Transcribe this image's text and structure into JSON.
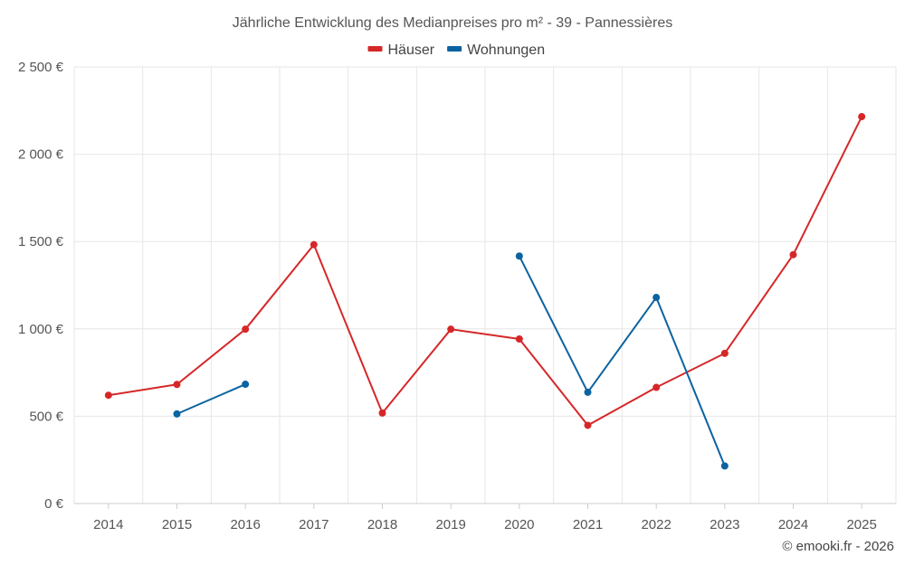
{
  "chart_data": {
    "type": "line",
    "title": "Jährliche Entwicklung des Medianpreises pro m² - 39 - Pannessières",
    "categories": [
      "2014",
      "2015",
      "2016",
      "2017",
      "2018",
      "2019",
      "2020",
      "2021",
      "2022",
      "2023",
      "2024",
      "2025"
    ],
    "ylim": [
      0,
      2500
    ],
    "yticks": [
      0,
      500,
      1000,
      1500,
      2000,
      2500
    ],
    "ytick_labels": [
      "0 €",
      "500 €",
      "1 000 €",
      "1 500 €",
      "2 000 €",
      "2 500 €"
    ],
    "xlabel": "",
    "ylabel": "",
    "grid": true,
    "legend_position": "top-center",
    "series": [
      {
        "name": "Häuser",
        "color": "#d62728",
        "values": [
          620,
          682,
          998,
          1482,
          518,
          998,
          942,
          448,
          665,
          860,
          1425,
          2215
        ]
      },
      {
        "name": "Wohnungen",
        "color": "#0b63a0",
        "values": [
          null,
          513,
          683,
          null,
          null,
          null,
          1417,
          637,
          1180,
          215,
          null,
          null
        ]
      }
    ]
  },
  "credit": "© emooki.fr - 2026"
}
